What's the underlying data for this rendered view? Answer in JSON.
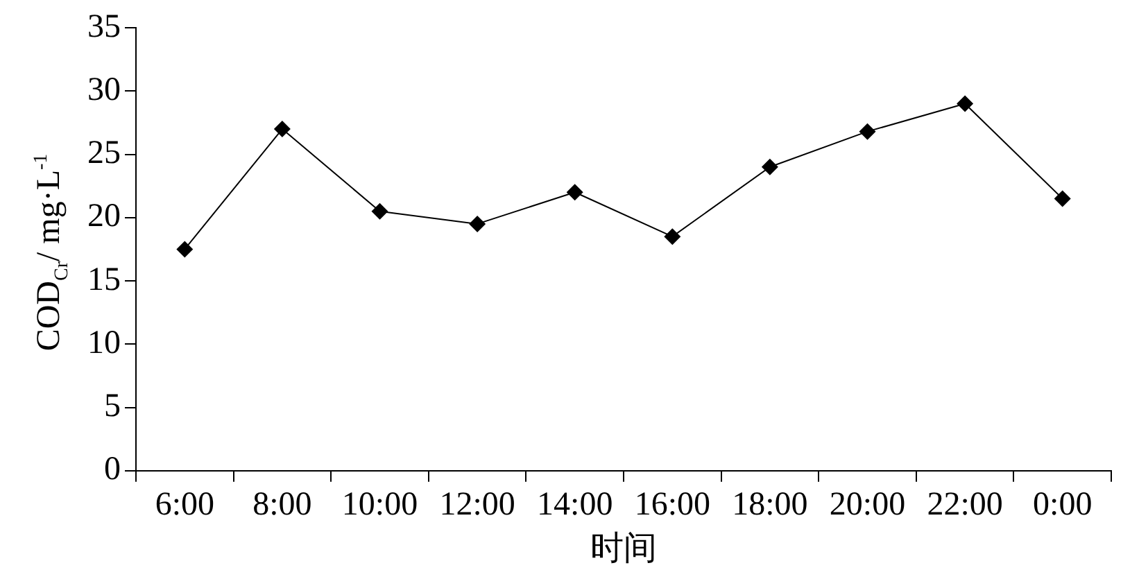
{
  "chart_data": {
    "type": "line",
    "xlabel": "时间",
    "ylabel": "COD$_{Cr}$/ mg·L$^{-1}$",
    "categories": [
      "6:00",
      "8:00",
      "10:00",
      "12:00",
      "14:00",
      "16:00",
      "18:00",
      "20:00",
      "22:00",
      "0:00"
    ],
    "values": [
      17.5,
      27,
      20.5,
      19.5,
      22,
      18.5,
      24,
      26.8,
      29,
      21.5
    ],
    "color": "#000000",
    "marker": "diamond",
    "ylim": [
      0,
      35
    ],
    "yticks": [
      0,
      5,
      10,
      15,
      20,
      25,
      30,
      35
    ]
  }
}
